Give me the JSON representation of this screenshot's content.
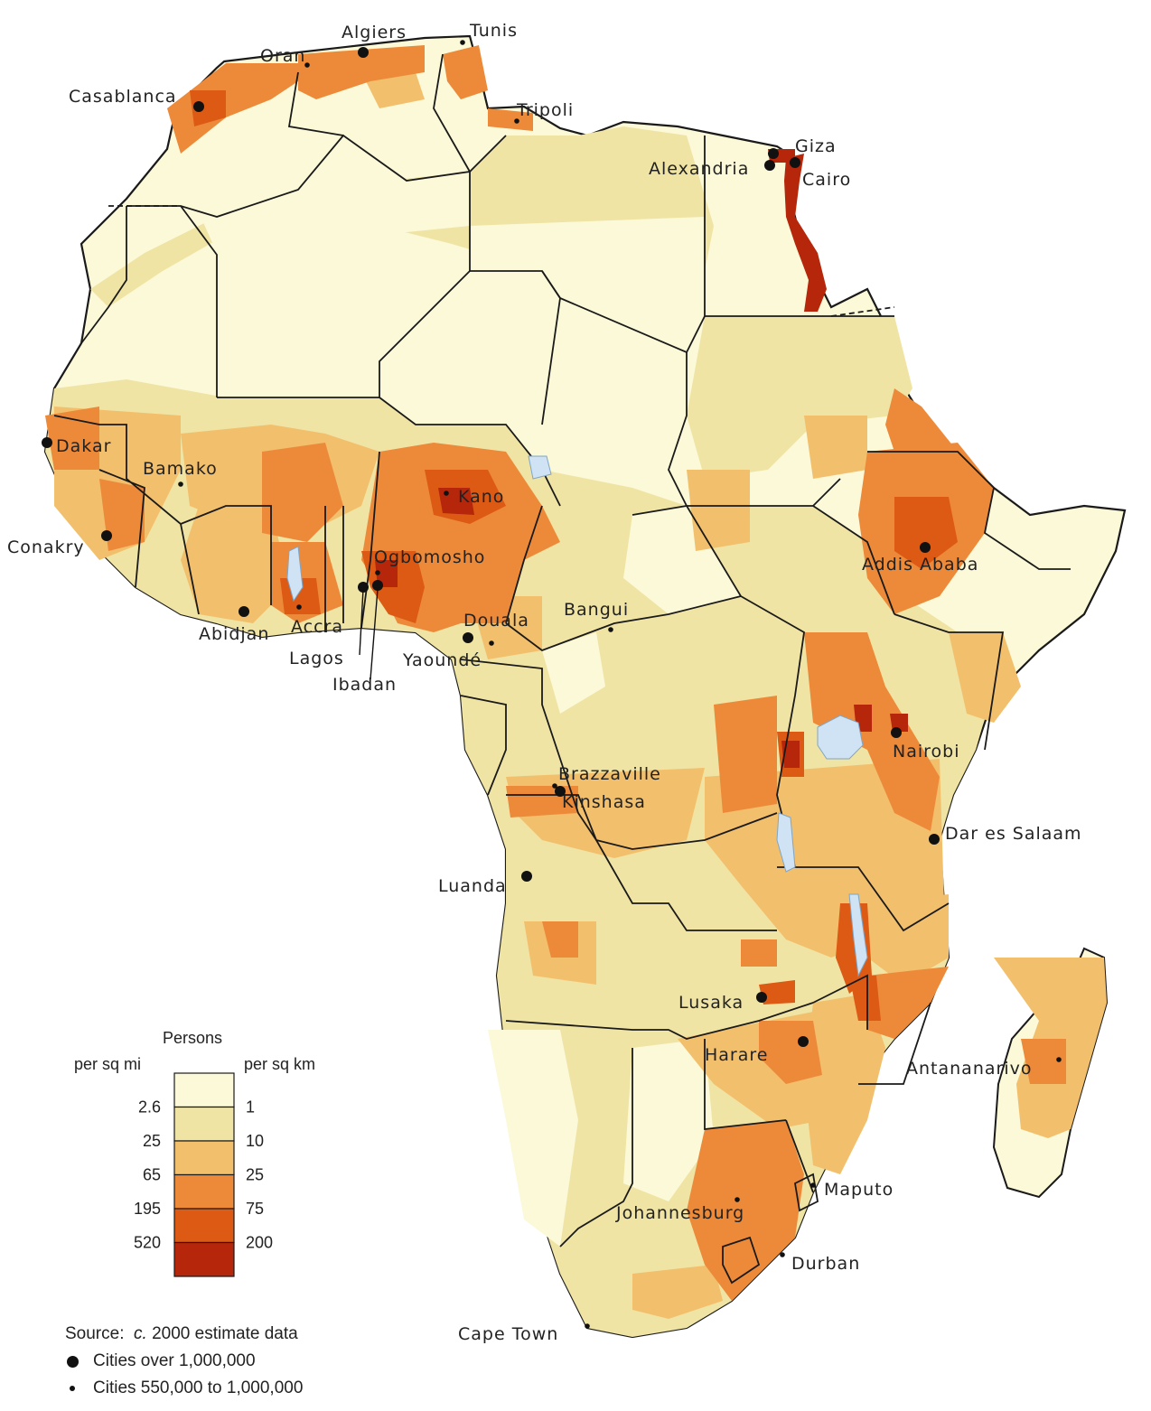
{
  "colors": {
    "d1": "#fbf9d8",
    "d2": "#f0e4a4",
    "d3": "#f2bf6c",
    "d4": "#ec8a3a",
    "d5": "#dc5a14",
    "d6": "#b5260a",
    "water": "#cfe3f4",
    "border": "#1a1a1a"
  },
  "legend": {
    "title": "Persons",
    "left_header": "per sq mi",
    "right_header": "per sq km",
    "left_values": [
      "2.6",
      "25",
      "65",
      "195",
      "520"
    ],
    "right_values": [
      "1",
      "10",
      "25",
      "75",
      "200"
    ]
  },
  "footer": {
    "source_prefix": "Source:",
    "source_italic": "c.",
    "source_rest": "2000 estimate data",
    "big_cities": "Cities over 1,000,000",
    "small_cities": "Cities 550,000 to 1,000,000"
  },
  "cities": [
    {
      "name": "Algiers",
      "size": "big"
    },
    {
      "name": "Tunis",
      "size": "small"
    },
    {
      "name": "Oran",
      "size": "small"
    },
    {
      "name": "Casablanca",
      "size": "big"
    },
    {
      "name": "Tripoli",
      "size": "small"
    },
    {
      "name": "Giza",
      "size": "big"
    },
    {
      "name": "Alexandria",
      "size": "big"
    },
    {
      "name": "Cairo",
      "size": "big"
    },
    {
      "name": "Dakar",
      "size": "big"
    },
    {
      "name": "Bamako",
      "size": "small"
    },
    {
      "name": "Kano",
      "size": "small"
    },
    {
      "name": "Conakry",
      "size": "big"
    },
    {
      "name": "Ogbomosho",
      "size": "small"
    },
    {
      "name": "Addis Ababa",
      "size": "big"
    },
    {
      "name": "Abidjan",
      "size": "big"
    },
    {
      "name": "Accra",
      "size": "small"
    },
    {
      "name": "Douala",
      "size": "big"
    },
    {
      "name": "Bangui",
      "size": "small"
    },
    {
      "name": "Lagos",
      "size": "big"
    },
    {
      "name": "Yaoundé",
      "size": "small"
    },
    {
      "name": "Ibadan",
      "size": "big"
    },
    {
      "name": "Nairobi",
      "size": "big"
    },
    {
      "name": "Brazzaville",
      "size": "small"
    },
    {
      "name": "Kinshasa",
      "size": "big"
    },
    {
      "name": "Dar es Salaam",
      "size": "big"
    },
    {
      "name": "Luanda",
      "size": "big"
    },
    {
      "name": "Lusaka",
      "size": "big"
    },
    {
      "name": "Harare",
      "size": "big"
    },
    {
      "name": "Antananarivo",
      "size": "small"
    },
    {
      "name": "Maputo",
      "size": "small"
    },
    {
      "name": "Johannesburg",
      "size": "small"
    },
    {
      "name": "Durban",
      "size": "small"
    },
    {
      "name": "Cape Town",
      "size": "small"
    }
  ]
}
